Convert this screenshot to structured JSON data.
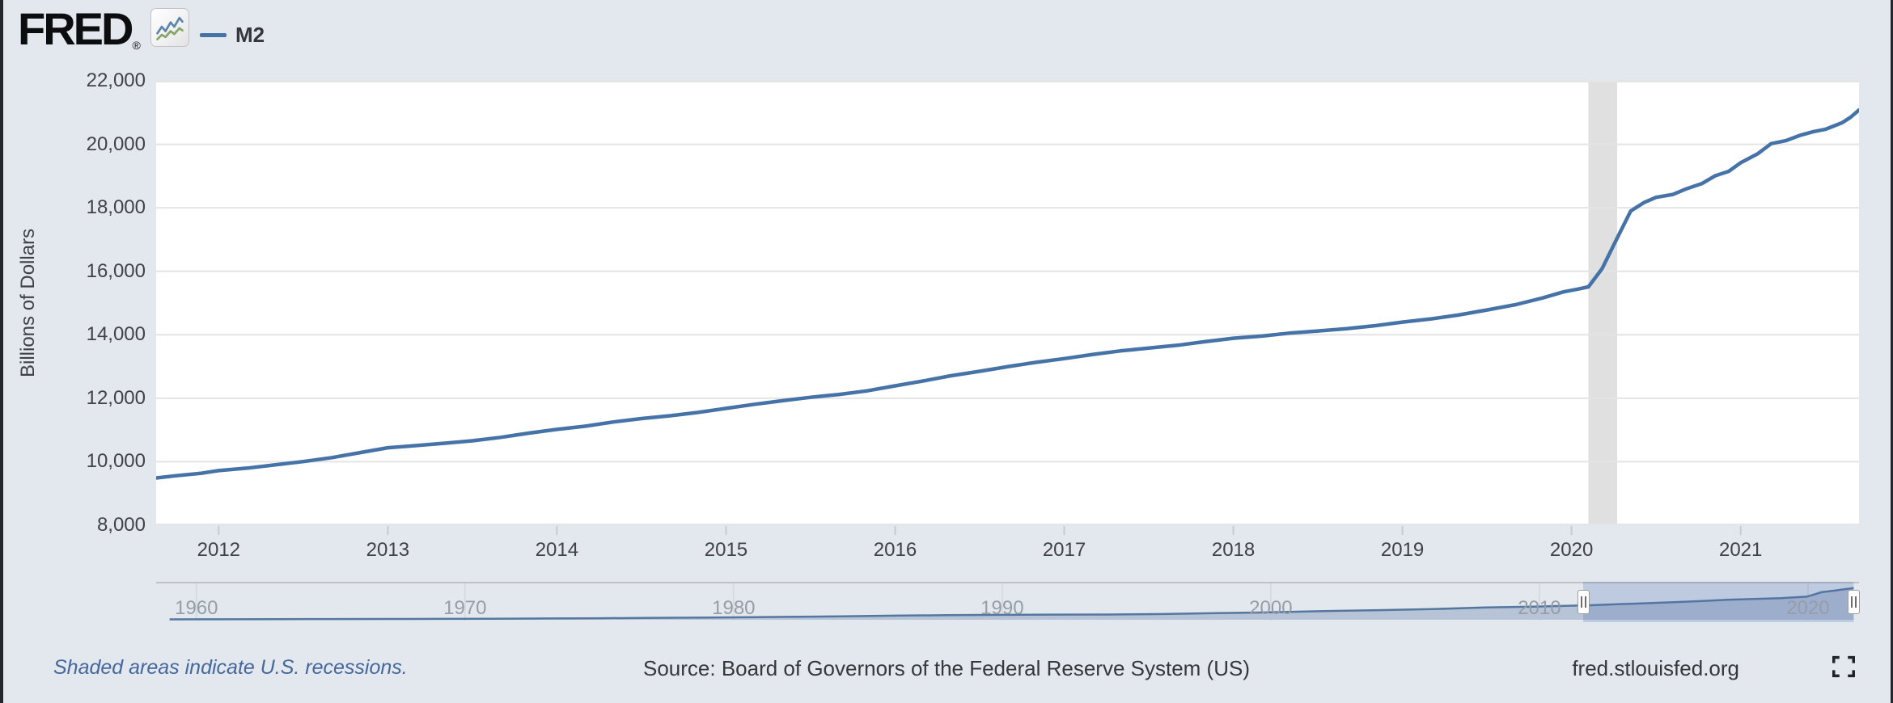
{
  "branding": {
    "logo_text": "FRED",
    "registered_mark": "®",
    "logo_chart_icon": "fred-sparkline-icon"
  },
  "legend": {
    "series_label": "M2",
    "series_color": "#4572a7"
  },
  "chart_data": {
    "type": "line",
    "title": "M2",
    "ylabel": "Billions of Dollars",
    "units": "Billions of Dollars",
    "grid": "horizontal",
    "legend_position": "top-left",
    "xlim": [
      2011.63,
      2021.7
    ],
    "ylim": [
      8000,
      22000
    ],
    "y_tick_values": [
      22000,
      20000,
      18000,
      16000,
      14000,
      12000,
      10000,
      8000
    ],
    "y_tick_labels": [
      "22,000",
      "20,000",
      "18,000",
      "16,000",
      "14,000",
      "12,000",
      "10,000",
      "8,000"
    ],
    "x_tick_values": [
      2012,
      2013,
      2014,
      2015,
      2016,
      2017,
      2018,
      2019,
      2020,
      2021
    ],
    "x_tick_labels": [
      "2012",
      "2013",
      "2014",
      "2015",
      "2016",
      "2017",
      "2018",
      "2019",
      "2020",
      "2021"
    ],
    "line_color": "#4572a7",
    "recession_bands": [
      {
        "start": 2020.1,
        "end": 2020.27
      }
    ],
    "series": [
      {
        "name": "M2",
        "points": [
          [
            2011.63,
            9490
          ],
          [
            2011.75,
            9560
          ],
          [
            2011.9,
            9640
          ],
          [
            2012.0,
            9720
          ],
          [
            2012.17,
            9800
          ],
          [
            2012.33,
            9900
          ],
          [
            2012.5,
            10005
          ],
          [
            2012.67,
            10130
          ],
          [
            2012.83,
            10280
          ],
          [
            2013.0,
            10440
          ],
          [
            2013.17,
            10510
          ],
          [
            2013.33,
            10580
          ],
          [
            2013.5,
            10660
          ],
          [
            2013.67,
            10770
          ],
          [
            2013.83,
            10900
          ],
          [
            2014.0,
            11020
          ],
          [
            2014.17,
            11120
          ],
          [
            2014.33,
            11250
          ],
          [
            2014.5,
            11360
          ],
          [
            2014.67,
            11450
          ],
          [
            2014.83,
            11550
          ],
          [
            2015.0,
            11680
          ],
          [
            2015.17,
            11810
          ],
          [
            2015.33,
            11920
          ],
          [
            2015.5,
            12030
          ],
          [
            2015.67,
            12120
          ],
          [
            2015.83,
            12230
          ],
          [
            2016.0,
            12390
          ],
          [
            2016.17,
            12550
          ],
          [
            2016.33,
            12710
          ],
          [
            2016.5,
            12850
          ],
          [
            2016.67,
            13000
          ],
          [
            2016.83,
            13130
          ],
          [
            2017.0,
            13250
          ],
          [
            2017.17,
            13380
          ],
          [
            2017.33,
            13490
          ],
          [
            2017.5,
            13580
          ],
          [
            2017.67,
            13670
          ],
          [
            2017.83,
            13780
          ],
          [
            2018.0,
            13890
          ],
          [
            2018.17,
            13960
          ],
          [
            2018.33,
            14050
          ],
          [
            2018.5,
            14120
          ],
          [
            2018.67,
            14190
          ],
          [
            2018.83,
            14280
          ],
          [
            2019.0,
            14400
          ],
          [
            2019.17,
            14500
          ],
          [
            2019.33,
            14620
          ],
          [
            2019.5,
            14780
          ],
          [
            2019.67,
            14950
          ],
          [
            2019.83,
            15160
          ],
          [
            2019.95,
            15350
          ],
          [
            2020.04,
            15440
          ],
          [
            2020.1,
            15510
          ],
          [
            2020.18,
            16080
          ],
          [
            2020.27,
            17050
          ],
          [
            2020.35,
            17900
          ],
          [
            2020.43,
            18170
          ],
          [
            2020.5,
            18330
          ],
          [
            2020.6,
            18420
          ],
          [
            2020.68,
            18600
          ],
          [
            2020.77,
            18760
          ],
          [
            2020.85,
            19010
          ],
          [
            2020.93,
            19150
          ],
          [
            2021.0,
            19420
          ],
          [
            2021.1,
            19700
          ],
          [
            2021.18,
            20020
          ],
          [
            2021.27,
            20120
          ],
          [
            2021.35,
            20280
          ],
          [
            2021.43,
            20400
          ],
          [
            2021.5,
            20470
          ],
          [
            2021.6,
            20680
          ],
          [
            2021.65,
            20850
          ],
          [
            2021.7,
            21080
          ]
        ]
      }
    ]
  },
  "navigator": {
    "xlim": [
      1958.5,
      2021.9
    ],
    "vmax": 21500,
    "selection": {
      "start": 2011.63,
      "end": 2021.7
    },
    "decade_years": [
      1960,
      1970,
      1980,
      1990,
      2000,
      2010,
      2020
    ],
    "decade_labels": [
      "1960",
      "1970",
      "1980",
      "1990",
      "2000",
      "2010",
      "2020"
    ],
    "handle_icon": "drag-handle-icon",
    "series_points": [
      [
        1959,
        287
      ],
      [
        1961,
        335
      ],
      [
        1963,
        393
      ],
      [
        1965,
        459
      ],
      [
        1967,
        524
      ],
      [
        1969,
        590
      ],
      [
        1971,
        710
      ],
      [
        1973,
        856
      ],
      [
        1975,
        1016
      ],
      [
        1977,
        1270
      ],
      [
        1979,
        1470
      ],
      [
        1980,
        1600
      ],
      [
        1982,
        1910
      ],
      [
        1984,
        2310
      ],
      [
        1986,
        2730
      ],
      [
        1988,
        3070
      ],
      [
        1990,
        3277
      ],
      [
        1992,
        3432
      ],
      [
        1994,
        3500
      ],
      [
        1996,
        3820
      ],
      [
        1998,
        4400
      ],
      [
        2000,
        4920
      ],
      [
        2002,
        5780
      ],
      [
        2004,
        6420
      ],
      [
        2006,
        7070
      ],
      [
        2008,
        8190
      ],
      [
        2010,
        8800
      ],
      [
        2011.63,
        9490
      ],
      [
        2012,
        9720
      ],
      [
        2013,
        10440
      ],
      [
        2014,
        11020
      ],
      [
        2015,
        11680
      ],
      [
        2016,
        12390
      ],
      [
        2017,
        13250
      ],
      [
        2018,
        13890
      ],
      [
        2019,
        14400
      ],
      [
        2019.95,
        15350
      ],
      [
        2020.27,
        17050
      ],
      [
        2020.5,
        18330
      ],
      [
        2021,
        19420
      ],
      [
        2021.35,
        20280
      ],
      [
        2021.7,
        21080
      ]
    ]
  },
  "footer": {
    "recession_note": "Shaded areas indicate U.S. recessions.",
    "source": "Source: Board of Governors of the Federal Reserve System (US)",
    "site": "fred.stlouisfed.org",
    "fullscreen_icon": "fullscreen-icon"
  },
  "colors": {
    "page_bg": "#e3e8ef",
    "plot_bg": "#ffffff",
    "gridline": "#e4e4e4",
    "recession_band": "#e0e0e0",
    "line": "#4572a7",
    "axis_tick_mark": "#c3cbd8",
    "tick_text": "#3f4246",
    "nav_area_fill": "#b7c3d6",
    "nav_line": "#54779f",
    "nav_selection": "rgba(80,112,178,0.25)",
    "nav_gridline": "#d5dae3",
    "nav_top_border": "#c2c2c2",
    "decade_text": "#979da7",
    "note_text": "#45679c",
    "footer_text": "#35383b"
  }
}
